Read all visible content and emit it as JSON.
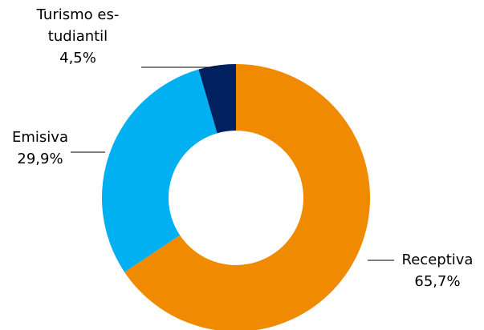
{
  "chart_data": {
    "type": "donut",
    "categories": [
      "Receptiva",
      "Emisiva",
      "Turismo es-tudiantil"
    ],
    "values": [
      65.7,
      29.9,
      4.5
    ],
    "value_labels": [
      "65,7%",
      "29,9%",
      "4,5%"
    ],
    "colors": [
      "#f08a00",
      "#00b0f0",
      "#002060"
    ]
  }
}
